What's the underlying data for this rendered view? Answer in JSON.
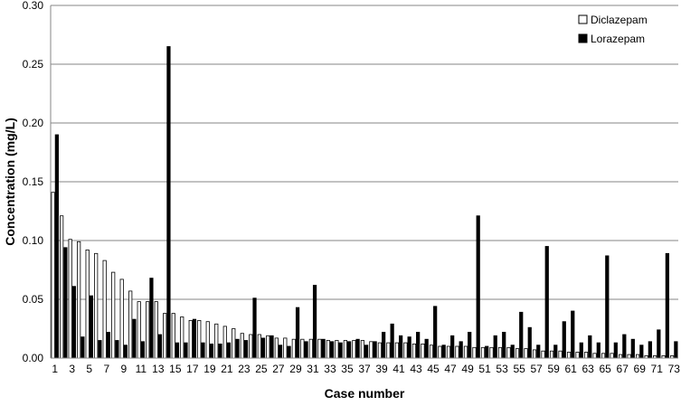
{
  "chart_data": {
    "type": "bar",
    "title": "",
    "xlabel": "Case number",
    "ylabel": "Concentration (mg/L)",
    "ylim": [
      0,
      0.3
    ],
    "yticks": [
      "0.00",
      "0.05",
      "0.10",
      "0.15",
      "0.20",
      "0.25",
      "0.30"
    ],
    "xtick_labels": [
      "1",
      "3",
      "5",
      "7",
      "9",
      "11",
      "13",
      "15",
      "17",
      "19",
      "21",
      "23",
      "25",
      "27",
      "29",
      "31",
      "33",
      "35",
      "37",
      "39",
      "41",
      "43",
      "45",
      "47",
      "49",
      "51",
      "53",
      "55",
      "57",
      "59",
      "61",
      "63",
      "65",
      "67",
      "69",
      "71",
      "73"
    ],
    "grid": "horizontal",
    "legend_position": "top-right",
    "categories": [
      "1",
      "2",
      "3",
      "4",
      "5",
      "6",
      "7",
      "8",
      "9",
      "10",
      "11",
      "12",
      "13",
      "14",
      "15",
      "16",
      "17",
      "18",
      "19",
      "20",
      "21",
      "22",
      "23",
      "24",
      "25",
      "26",
      "27",
      "28",
      "29",
      "30",
      "31",
      "32",
      "33",
      "34",
      "35",
      "36",
      "37",
      "38",
      "39",
      "40",
      "41",
      "42",
      "43",
      "44",
      "45",
      "46",
      "47",
      "48",
      "49",
      "50",
      "51",
      "52",
      "53",
      "54",
      "55",
      "56",
      "57",
      "58",
      "59",
      "60",
      "61",
      "62",
      "63",
      "64",
      "65",
      "66",
      "67",
      "68",
      "69",
      "70",
      "71",
      "72",
      "73"
    ],
    "series": [
      {
        "name": "Diclazepam",
        "color": "#ffffff",
        "stroke": "#000000",
        "values": [
          0.141,
          0.121,
          0.101,
          0.099,
          0.092,
          0.089,
          0.083,
          0.073,
          0.067,
          0.057,
          0.048,
          0.048,
          0.048,
          0.038,
          0.038,
          0.035,
          0.032,
          0.032,
          0.031,
          0.029,
          0.027,
          0.025,
          0.021,
          0.02,
          0.02,
          0.019,
          0.017,
          0.017,
          0.016,
          0.016,
          0.016,
          0.016,
          0.015,
          0.015,
          0.015,
          0.015,
          0.015,
          0.014,
          0.013,
          0.013,
          0.013,
          0.013,
          0.012,
          0.012,
          0.011,
          0.01,
          0.01,
          0.01,
          0.01,
          0.009,
          0.009,
          0.009,
          0.009,
          0.009,
          0.008,
          0.008,
          0.007,
          0.006,
          0.006,
          0.006,
          0.005,
          0.005,
          0.005,
          0.004,
          0.004,
          0.004,
          0.003,
          0.003,
          0.003,
          0.002,
          0.002,
          0.002,
          0.002
        ]
      },
      {
        "name": "Lorazepam",
        "color": "#000000",
        "stroke": "#000000",
        "values": [
          0.19,
          0.094,
          0.061,
          0.018,
          0.053,
          0.015,
          0.022,
          0.015,
          0.011,
          0.033,
          0.014,
          0.068,
          0.02,
          0.265,
          0.013,
          0.013,
          0.033,
          0.013,
          0.012,
          0.012,
          0.013,
          0.016,
          0.015,
          0.051,
          0.017,
          0.019,
          0.011,
          0.01,
          0.043,
          0.014,
          0.062,
          0.016,
          0.014,
          0.013,
          0.014,
          0.016,
          0.011,
          0.014,
          0.022,
          0.029,
          0.019,
          0.018,
          0.022,
          0.016,
          0.044,
          0.011,
          0.019,
          0.014,
          0.022,
          0.121,
          0.01,
          0.019,
          0.022,
          0.011,
          0.039,
          0.026,
          0.011,
          0.095,
          0.011,
          0.031,
          0.04,
          0.013,
          0.019,
          0.013,
          0.087,
          0.013,
          0.02,
          0.016,
          0.011,
          0.014,
          0.024,
          0.089,
          0.014
        ]
      }
    ]
  }
}
